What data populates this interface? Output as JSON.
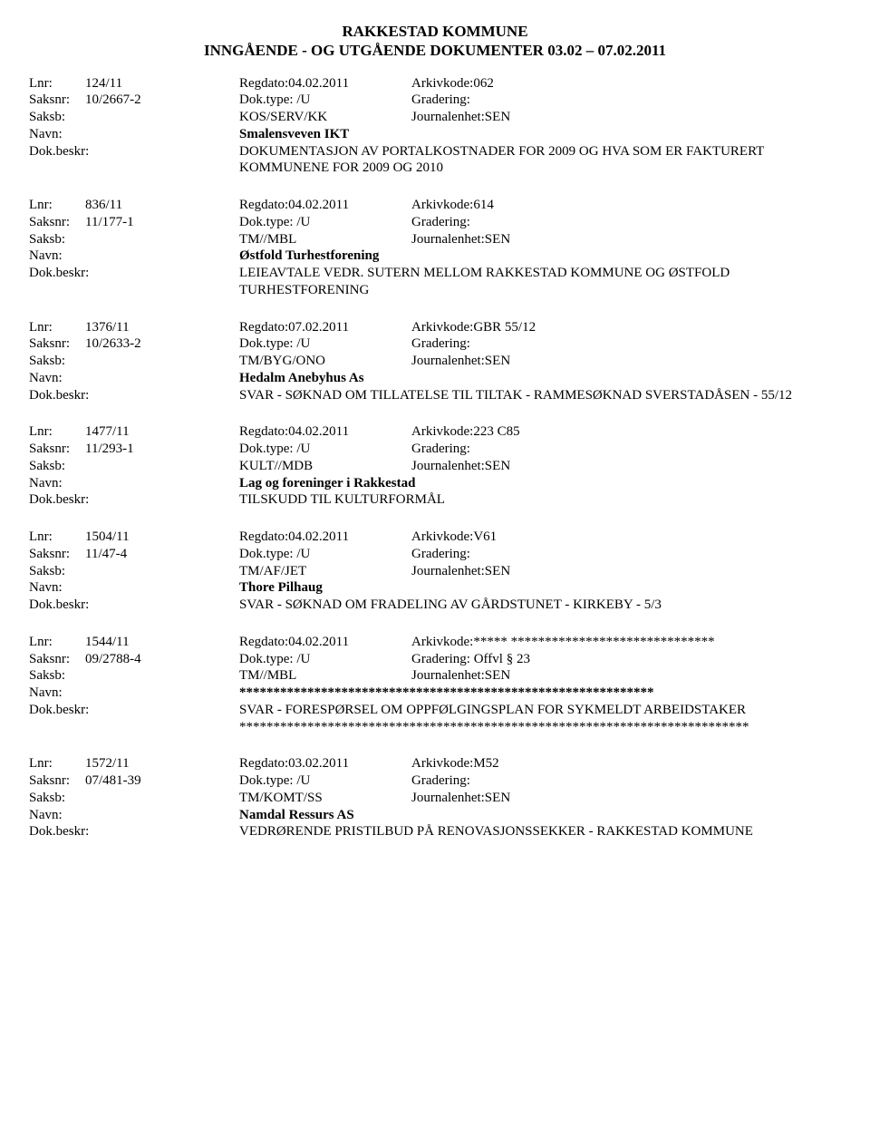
{
  "header": {
    "line1": "RAKKESTAD KOMMUNE",
    "line2": "INNGÅENDE - OG UTGÅENDE DOKUMENTER 03.02 – 07.02.2011"
  },
  "labels": {
    "lnr": "Lnr:",
    "saksnr": "Saksnr:",
    "saksb": "Saksb:",
    "navn": "Navn:",
    "dokbeskr": "Dok.beskr:"
  },
  "entries": [
    {
      "lnr": "124/11",
      "regdato": "Regdato:04.02.2011",
      "arkivkode": "Arkivkode:062",
      "saksnr": "10/2667-2",
      "doktype": "Dok.type: /U",
      "gradering": "Gradering:",
      "saksb": "KOS/SERV/KK",
      "journalenhet": "Journalenhet:SEN",
      "navn": "Smalensveven IKT",
      "dokbeskr": "DOKUMENTASJON AV PORTALKOSTNADER FOR 2009 OG HVA SOM ER FAKTURERT KOMMUNENE FOR 2009 OG 2010"
    },
    {
      "lnr": "836/11",
      "regdato": "Regdato:04.02.2011",
      "arkivkode": "Arkivkode:614",
      "saksnr": "11/177-1",
      "doktype": "Dok.type: /U",
      "gradering": "Gradering:",
      "saksb": "TM//MBL",
      "journalenhet": "Journalenhet:SEN",
      "navn": "Østfold Turhestforening",
      "dokbeskr": "LEIEAVTALE VEDR. SUTERN MELLOM RAKKESTAD KOMMUNE OG ØSTFOLD TURHESTFORENING"
    },
    {
      "lnr": "1376/11",
      "regdato": "Regdato:07.02.2011",
      "arkivkode": "Arkivkode:GBR 55/12",
      "saksnr": "10/2633-2",
      "doktype": "Dok.type: /U",
      "gradering": "Gradering:",
      "saksb": "TM/BYG/ONO",
      "journalenhet": "Journalenhet:SEN",
      "navn": "Hedalm Anebyhus As",
      "dokbeskr": "SVAR - SØKNAD OM TILLATELSE TIL TILTAK - RAMMESØKNAD SVERSTADÅSEN - 55/12"
    },
    {
      "lnr": "1477/11",
      "regdato": "Regdato:04.02.2011",
      "arkivkode": "Arkivkode:223 C85",
      "saksnr": "11/293-1",
      "doktype": "Dok.type: /U",
      "gradering": "Gradering:",
      "saksb": "KULT//MDB",
      "journalenhet": "Journalenhet:SEN",
      "navn": "Lag og foreninger i Rakkestad",
      "dokbeskr": "TILSKUDD TIL KULTURFORMÅL"
    },
    {
      "lnr": "1504/11",
      "regdato": "Regdato:04.02.2011",
      "arkivkode": "Arkivkode:V61",
      "saksnr": "11/47-4",
      "doktype": "Dok.type: /U",
      "gradering": "Gradering:",
      "saksb": "TM/AF/JET",
      "journalenhet": "Journalenhet:SEN",
      "navn": "Thore Pilhaug",
      "dokbeskr": "SVAR - SØKNAD OM FRADELING AV GÅRDSTUNET - KIRKEBY - 5/3"
    },
    {
      "lnr": "1544/11",
      "regdato": "Regdato:04.02.2011",
      "arkivkode": "Arkivkode:***** ******************************",
      "saksnr": "09/2788-4",
      "doktype": "Dok.type: /U",
      "gradering": "Gradering: Offvl § 23",
      "saksb": "TM//MBL",
      "journalenhet": "Journalenhet:SEN",
      "navn": "*************************************************************",
      "dokbeskr": "SVAR - FORESPØRSEL OM OPPFØLGINGSPLAN FOR SYKMELDT ARBEIDSTAKER\n***************************************************************************"
    },
    {
      "lnr": "1572/11",
      "regdato": "Regdato:03.02.2011",
      "arkivkode": "Arkivkode:M52",
      "saksnr": "07/481-39",
      "doktype": "Dok.type: /U",
      "gradering": "Gradering:",
      "saksb": "TM/KOMT/SS",
      "journalenhet": "Journalenhet:SEN",
      "navn": "Namdal Ressurs AS",
      "dokbeskr": "VEDRØRENDE PRISTILBUD PÅ RENOVASJONSSEKKER - RAKKESTAD KOMMUNE"
    }
  ]
}
